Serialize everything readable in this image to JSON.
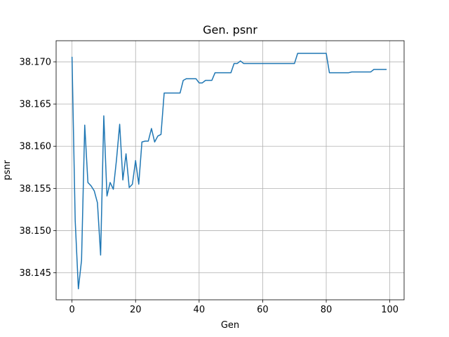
{
  "chart_data": {
    "type": "line",
    "title": "Gen. psnr",
    "xlabel": "Gen",
    "ylabel": "psnr",
    "xlim": [
      -5,
      104.5
    ],
    "ylim": [
      38.1418,
      38.1725
    ],
    "xticks": [
      0,
      20,
      40,
      60,
      80,
      100
    ],
    "xtick_labels": [
      "0",
      "20",
      "40",
      "60",
      "80",
      "100"
    ],
    "yticks": [
      38.145,
      38.15,
      38.155,
      38.16,
      38.165,
      38.17
    ],
    "ytick_labels": [
      "38.145",
      "38.150",
      "38.155",
      "38.160",
      "38.165",
      "38.170"
    ],
    "grid": true,
    "line_color": "#1f77b4",
    "series": [
      {
        "x": [
          0,
          1,
          2,
          3,
          4,
          5,
          6,
          7,
          8,
          9,
          10,
          11,
          12,
          13,
          14,
          15,
          16,
          17,
          18,
          19,
          20,
          21,
          22,
          23,
          24,
          25,
          26,
          27,
          28,
          29,
          30,
          31,
          32,
          33,
          34,
          35,
          36,
          37,
          38,
          39,
          40,
          41,
          42,
          43,
          44,
          45,
          46,
          47,
          48,
          49,
          50,
          51,
          52,
          53,
          54,
          55,
          56,
          57,
          58,
          59,
          60,
          61,
          62,
          63,
          64,
          65,
          66,
          67,
          68,
          69,
          70,
          71,
          72,
          73,
          74,
          75,
          76,
          77,
          78,
          79,
          80,
          81,
          82,
          83,
          84,
          85,
          86,
          87,
          88,
          89,
          90,
          91,
          92,
          93,
          94,
          95,
          96,
          97,
          98,
          99
        ],
        "y": [
          38.1706,
          38.1512,
          38.1431,
          38.1465,
          38.1625,
          38.1557,
          38.1553,
          38.1547,
          38.1533,
          38.1471,
          38.1636,
          38.1541,
          38.1557,
          38.1549,
          38.1584,
          38.1626,
          38.156,
          38.1591,
          38.1551,
          38.1555,
          38.1583,
          38.1555,
          38.1605,
          38.1606,
          38.1606,
          38.1621,
          38.1605,
          38.1612,
          38.1614,
          38.1663,
          38.1663,
          38.1663,
          38.1663,
          38.1663,
          38.1663,
          38.1678,
          38.168,
          38.168,
          38.168,
          38.168,
          38.1675,
          38.1675,
          38.1678,
          38.1678,
          38.1678,
          38.1687,
          38.1687,
          38.1687,
          38.1687,
          38.1687,
          38.1687,
          38.1698,
          38.1698,
          38.1701,
          38.1698,
          38.1698,
          38.1698,
          38.1698,
          38.1698,
          38.1698,
          38.1698,
          38.1698,
          38.1698,
          38.1698,
          38.1698,
          38.1698,
          38.1698,
          38.1698,
          38.1698,
          38.1698,
          38.1698,
          38.171,
          38.171,
          38.171,
          38.171,
          38.171,
          38.171,
          38.171,
          38.171,
          38.171,
          38.171,
          38.1687,
          38.1687,
          38.1687,
          38.1687,
          38.1687,
          38.1687,
          38.1687,
          38.1688,
          38.1688,
          38.1688,
          38.1688,
          38.1688,
          38.1688,
          38.1688,
          38.1691,
          38.1691,
          38.1691,
          38.1691,
          38.1691
        ]
      }
    ]
  }
}
